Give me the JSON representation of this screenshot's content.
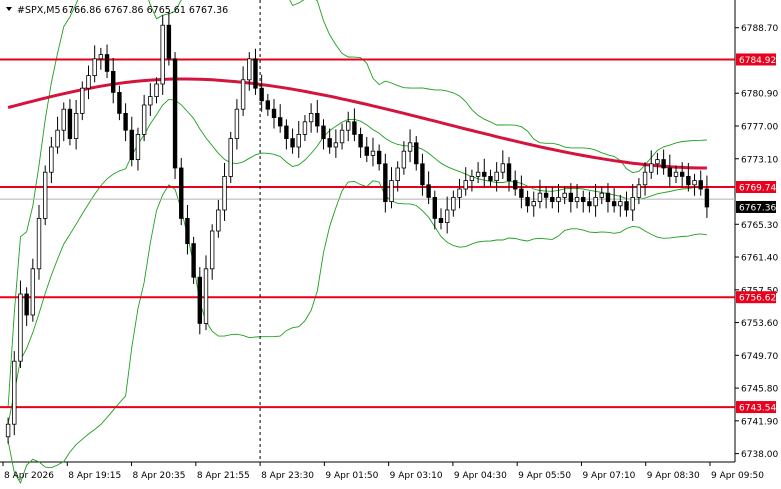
{
  "header": {
    "symbol": "#SPX,M5",
    "ohlc": "6766.86 6767.86 6765.61 6767.36"
  },
  "chart_data": {
    "type": "candlestick",
    "symbol": "#SPX",
    "timeframe": "M5",
    "ylim": [
      6737.0,
      6792.0
    ],
    "y_ticks": [
      "6788.70",
      "6784.92",
      "6780.90",
      "6777.00",
      "6773.10",
      "6769.74",
      "6765.30",
      "6761.40",
      "6757.50",
      "6756.62",
      "6753.60",
      "6749.70",
      "6745.80",
      "6743.54",
      "6741.90",
      "6738.00"
    ],
    "x_ticks": [
      "8 Apr 2026",
      "8 Apr 19:15",
      "8 Apr 20:35",
      "8 Apr 21:55",
      "8 Apr 23:30",
      "9 Apr 01:50",
      "9 Apr 03:10",
      "9 Apr 04:30",
      "9 Apr 05:50",
      "9 Apr 07:10",
      "9 Apr 08:30",
      "9 Apr 09:50"
    ],
    "levels": [
      {
        "value": 6784.92,
        "label": "6784.92",
        "color": "#e8001c"
      },
      {
        "value": 6769.74,
        "label": "6769.74",
        "color": "#e8001c"
      },
      {
        "value": 6756.62,
        "label": "6756.62",
        "color": "#e8001c"
      },
      {
        "value": 6743.54,
        "label": "6743.54",
        "color": "#e8001c"
      }
    ],
    "last_price": {
      "value": 6767.36,
      "label": "6767.36",
      "color": "#000000"
    },
    "bid_line": {
      "value": 6768.3,
      "label": "6768.30",
      "color": "#b0b0b0"
    },
    "candles_close": [
      6741.5,
      6749.0,
      6757.0,
      6754.5,
      6760.0,
      6766.0,
      6771.5,
      6774.5,
      6776.5,
      6779.0,
      6775.5,
      6778.5,
      6781.5,
      6783.0,
      6785.0,
      6785.5,
      6783.5,
      6781.0,
      6778.5,
      6776.5,
      6773.0,
      6776.0,
      6779.5,
      6780.5,
      6782.0,
      6789.0,
      6785.0,
      6772.0,
      6766.0,
      6763.0,
      6759.0,
      6753.5,
      6760.0,
      6764.5,
      6767.0,
      6771.0,
      6775.5,
      6779.0,
      6782.5,
      6785.0,
      6781.5,
      6780.0,
      6779.0,
      6778.0,
      6777.0,
      6775.5,
      6774.5,
      6776.0,
      6777.5,
      6778.5,
      6777.0,
      6775.5,
      6774.5,
      6775.0,
      6776.5,
      6777.5,
      6776.0,
      6774.5,
      6773.5,
      6774.0,
      6772.5,
      6768.0,
      6770.5,
      6772.0,
      6774.0,
      6775.0,
      6772.5,
      6770.0,
      6768.5,
      6766.0,
      6765.5,
      6767.0,
      6768.5,
      6769.5,
      6770.5,
      6771.0,
      6771.5,
      6771.0,
      6770.5,
      6771.5,
      6772.5,
      6770.5,
      6769.5,
      6768.5,
      6767.5,
      6768.0,
      6769.0,
      6768.5,
      6768.0,
      6768.5,
      6769.0,
      6768.0,
      6768.5,
      6768.0,
      6767.5,
      6768.5,
      6769.0,
      6768.0,
      6767.5,
      6768.0,
      6767.0,
      6768.5,
      6770.0,
      6771.5,
      6772.5,
      6773.0,
      6772.0,
      6771.0,
      6771.5,
      6771.0,
      6770.0,
      6770.5,
      6769.5,
      6767.36
    ],
    "ma": {
      "name": "",
      "color": "#d4143c",
      "start": 6779.2,
      "peak": 6782.6,
      "end": 6772.0
    },
    "bollinger": {
      "color": "#1ea01e"
    },
    "vertical_marker": "8 Apr 23:30"
  }
}
